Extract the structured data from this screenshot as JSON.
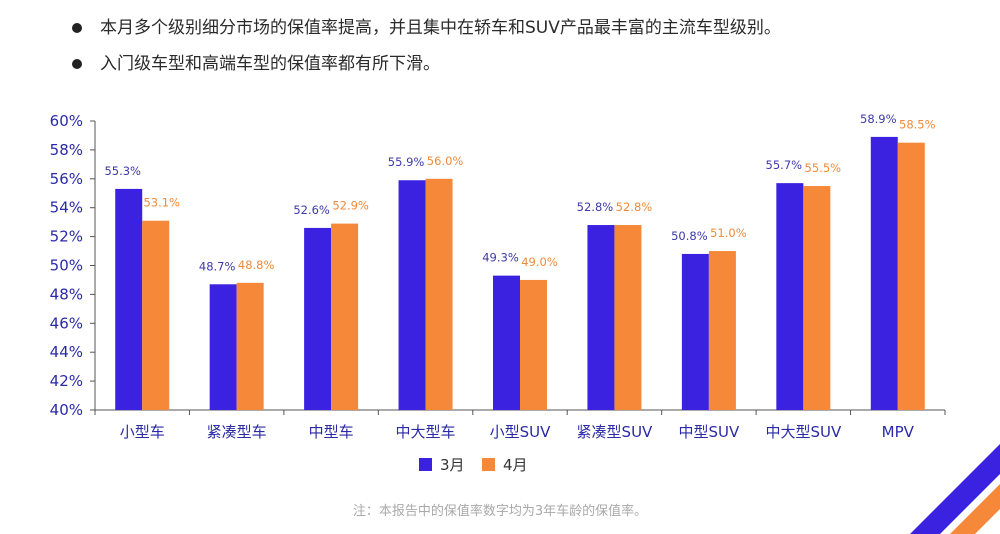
{
  "bullets": [
    "本月多个级别细分市场的保值率提高，并且集中在轿车和SUV产品最丰富的主流车型级别。",
    "入门级车型和高端车型的保值率都有所下滑。"
  ],
  "footnote": "注：本报告中的保值率数字均为3年车龄的保值率。",
  "colors": {
    "march": "#3a22e0",
    "april": "#f6883a",
    "label_march": "#3d3aa8",
    "label_april": "#f08a3a",
    "axis_text": "#2a2aa6"
  },
  "chart_data": {
    "type": "bar",
    "categories": [
      "小型车",
      "紧凑型车",
      "中型车",
      "中大型车",
      "小型SUV",
      "紧凑型SUV",
      "中型SUV",
      "中大型SUV",
      "MPV"
    ],
    "series": [
      {
        "name": "3月",
        "values": [
          55.3,
          48.7,
          52.6,
          55.9,
          49.3,
          52.8,
          50.8,
          55.7,
          58.9
        ],
        "labels": [
          "55.3%",
          "48.7%",
          "52.6%",
          "55.9%",
          "49.3%",
          "52.8%",
          "50.8%",
          "55.7%",
          "58.9%"
        ]
      },
      {
        "name": "4月",
        "values": [
          53.1,
          48.8,
          52.9,
          56.0,
          49.0,
          52.8,
          51.0,
          55.5,
          58.5
        ],
        "labels": [
          "53.1%",
          "48.8%",
          "52.9%",
          "56.0%",
          "49.0%",
          "52.8%",
          "51.0%",
          "55.5%",
          "58.5%"
        ]
      }
    ],
    "ylim": [
      40,
      60
    ],
    "yticks": [
      "40%",
      "42%",
      "44%",
      "46%",
      "48%",
      "50%",
      "52%",
      "54%",
      "56%",
      "58%",
      "60%"
    ],
    "legend_position": "bottom",
    "grid": false
  }
}
